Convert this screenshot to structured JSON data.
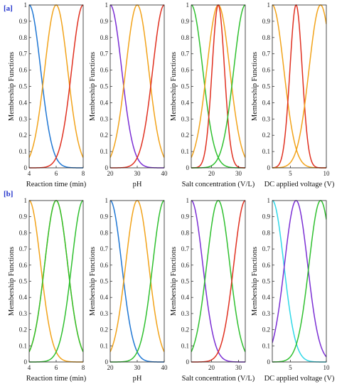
{
  "chart_data": [
    {
      "panel_label": "[a]",
      "ylabel": "Membership Functions",
      "plots": [
        {
          "xlabel": "Reaction time (min)",
          "xlim": [
            4,
            8
          ],
          "xticks": [
            4,
            6,
            8
          ],
          "xtick_labels": [
            "4",
            "6",
            "8"
          ],
          "ylim": [
            0,
            1
          ],
          "yticks": [
            0,
            0.1,
            0.2,
            0.3,
            0.4,
            0.5,
            0.6,
            0.7,
            0.8,
            0.9,
            1
          ],
          "ytick_labels": [
            "0",
            "0.1",
            "0.2",
            "0.3",
            "0.4",
            "0.5",
            "0.6",
            "0.7",
            "0.8",
            "0.9",
            "1"
          ],
          "series": [
            {
              "type": "gauss",
              "mean": 4,
              "sigma": 0.85,
              "color": "#1f77d4"
            },
            {
              "type": "gauss",
              "mean": 6,
              "sigma": 0.85,
              "color": "#f2a31a"
            },
            {
              "type": "gauss",
              "mean": 8,
              "sigma": 0.85,
              "color": "#e03020"
            }
          ]
        },
        {
          "xlabel": "pH",
          "xlim": [
            20,
            40
          ],
          "xticks": [
            20,
            30,
            40
          ],
          "xtick_labels": [
            "20",
            "30",
            "40"
          ],
          "ylim": [
            0,
            1
          ],
          "yticks": [
            0,
            0.1,
            0.2,
            0.3,
            0.4,
            0.5,
            0.6,
            0.7,
            0.8,
            0.9,
            1
          ],
          "ytick_labels": [
            "0",
            "0.1",
            "0.2",
            "0.3",
            "0.4",
            "0.5",
            "0.6",
            "0.7",
            "0.8",
            "0.9",
            "1"
          ],
          "series": [
            {
              "type": "gauss",
              "mean": 20,
              "sigma": 4.25,
              "color": "#7b2fd4"
            },
            {
              "type": "gauss",
              "mean": 30,
              "sigma": 4.25,
              "color": "#f2a31a"
            },
            {
              "type": "gauss",
              "mean": 40,
              "sigma": 4.25,
              "color": "#e03020"
            }
          ]
        },
        {
          "xlabel": "Salt concentration (V/L)",
          "xlim": [
            12.5,
            32.5
          ],
          "xticks": [
            20,
            30
          ],
          "xtick_labels": [
            "20",
            "30"
          ],
          "ylim": [
            0,
            1
          ],
          "yticks": [
            0,
            0.1,
            0.2,
            0.3,
            0.4,
            0.5,
            0.6,
            0.7,
            0.8,
            0.9,
            1
          ],
          "ytick_labels": [
            "0",
            "0.1",
            "0.2",
            "0.3",
            "0.4",
            "0.5",
            "0.6",
            "0.7",
            "0.8",
            "0.9",
            "1"
          ],
          "series": [
            {
              "type": "gauss",
              "mean": 12.5,
              "sigma": 4.25,
              "color": "#2fc02f"
            },
            {
              "type": "gauss",
              "mean": 22.5,
              "sigma": 4.25,
              "color": "#f2a31a"
            },
            {
              "type": "gauss",
              "mean": 22.5,
              "sigma": 2.3,
              "color": "#e03020"
            },
            {
              "type": "gauss",
              "mean": 32.5,
              "sigma": 4.25,
              "color": "#2fc02f"
            }
          ]
        },
        {
          "xlabel": "DC applied voltage (V)",
          "xlim": [
            2.5,
            10
          ],
          "xticks": [
            5,
            10
          ],
          "xtick_labels": [
            "5",
            "10"
          ],
          "ylim": [
            0,
            1
          ],
          "yticks": [
            0,
            0.1,
            0.2,
            0.3,
            0.4,
            0.5,
            0.6,
            0.7,
            0.8,
            0.9,
            1
          ],
          "ytick_labels": [
            "0",
            "0.1",
            "0.2",
            "0.3",
            "0.4",
            "0.5",
            "0.6",
            "0.7",
            "0.8",
            "0.9",
            "1"
          ],
          "series": [
            {
              "type": "gauss",
              "mean": 2.5,
              "sigma": 1.6,
              "color": "#f2a31a"
            },
            {
              "type": "gauss",
              "mean": 5.8,
              "sigma": 0.85,
              "color": "#e03020"
            },
            {
              "type": "gauss",
              "mean": 9.2,
              "sigma": 1.6,
              "color": "#f2a31a"
            }
          ]
        }
      ]
    },
    {
      "panel_label": "[b]",
      "ylabel": "Membership Functions",
      "plots": [
        {
          "xlabel": "Reaction time (min)",
          "xlim": [
            4,
            8
          ],
          "xticks": [
            4,
            6,
            8
          ],
          "xtick_labels": [
            "4",
            "6",
            "8"
          ],
          "ylim": [
            0,
            1
          ],
          "yticks": [
            0,
            0.1,
            0.2,
            0.3,
            0.4,
            0.5,
            0.6,
            0.7,
            0.8,
            0.9,
            1
          ],
          "ytick_labels": [
            "0",
            "0.1",
            "0.2",
            "0.3",
            "0.4",
            "0.5",
            "0.6",
            "0.7",
            "0.8",
            "0.9",
            "1"
          ],
          "series": [
            {
              "type": "gauss",
              "mean": 4,
              "sigma": 0.85,
              "color": "#f2a31a"
            },
            {
              "type": "gauss",
              "mean": 6,
              "sigma": 0.85,
              "color": "#f2a31a"
            },
            {
              "type": "gauss",
              "mean": 6,
              "sigma": 0.85,
              "color": "#2fc02f"
            },
            {
              "type": "gauss",
              "mean": 8,
              "sigma": 0.85,
              "color": "#2fc02f"
            }
          ]
        },
        {
          "xlabel": "pH",
          "xlim": [
            20,
            40
          ],
          "xticks": [
            20,
            30,
            40
          ],
          "xtick_labels": [
            "20",
            "30",
            "40"
          ],
          "ylim": [
            0,
            1
          ],
          "yticks": [
            0,
            0.1,
            0.2,
            0.3,
            0.4,
            0.5,
            0.6,
            0.7,
            0.8,
            0.9,
            1
          ],
          "ytick_labels": [
            "0",
            "0.1",
            "0.2",
            "0.3",
            "0.4",
            "0.5",
            "0.6",
            "0.7",
            "0.8",
            "0.9",
            "1"
          ],
          "series": [
            {
              "type": "gauss",
              "mean": 20,
              "sigma": 4.25,
              "color": "#1f77d4"
            },
            {
              "type": "gauss",
              "mean": 30,
              "sigma": 4.25,
              "color": "#f2a31a"
            },
            {
              "type": "gauss",
              "mean": 40,
              "sigma": 4.25,
              "color": "#2fc02f"
            }
          ]
        },
        {
          "xlabel": "Salt concentration (V/L)",
          "xlim": [
            12.5,
            32.5
          ],
          "xticks": [
            20,
            30
          ],
          "xtick_labels": [
            "20",
            "30"
          ],
          "ylim": [
            0,
            1
          ],
          "yticks": [
            0,
            0.1,
            0.2,
            0.3,
            0.4,
            0.5,
            0.6,
            0.7,
            0.8,
            0.9,
            1
          ],
          "ytick_labels": [
            "0",
            "0.1",
            "0.2",
            "0.3",
            "0.4",
            "0.5",
            "0.6",
            "0.7",
            "0.8",
            "0.9",
            "1"
          ],
          "series": [
            {
              "type": "gauss",
              "mean": 12.5,
              "sigma": 4.25,
              "color": "#7b2fd4"
            },
            {
              "type": "gauss",
              "mean": 22.5,
              "sigma": 4.25,
              "color": "#2fc02f"
            },
            {
              "type": "gauss",
              "mean": 32.5,
              "sigma": 4.25,
              "color": "#e03020"
            }
          ]
        },
        {
          "xlabel": "DC applied voltage (V)",
          "xlim": [
            2.5,
            10
          ],
          "xticks": [
            5,
            10
          ],
          "xtick_labels": [
            "5",
            "10"
          ],
          "ylim": [
            0,
            1
          ],
          "yticks": [
            0,
            0.1,
            0.2,
            0.3,
            0.4,
            0.5,
            0.6,
            0.7,
            0.8,
            0.9,
            1
          ],
          "ytick_labels": [
            "0",
            "0.1",
            "0.2",
            "0.3",
            "0.4",
            "0.5",
            "0.6",
            "0.7",
            "0.8",
            "0.9",
            "1"
          ],
          "series": [
            {
              "type": "gauss",
              "mean": 2.5,
              "sigma": 1.6,
              "color": "#30d8e8"
            },
            {
              "type": "gauss",
              "mean": 5.8,
              "sigma": 1.6,
              "color": "#7b2fd4"
            },
            {
              "type": "gauss",
              "mean": 9.2,
              "sigma": 1.6,
              "color": "#2fc02f"
            }
          ]
        }
      ]
    }
  ]
}
